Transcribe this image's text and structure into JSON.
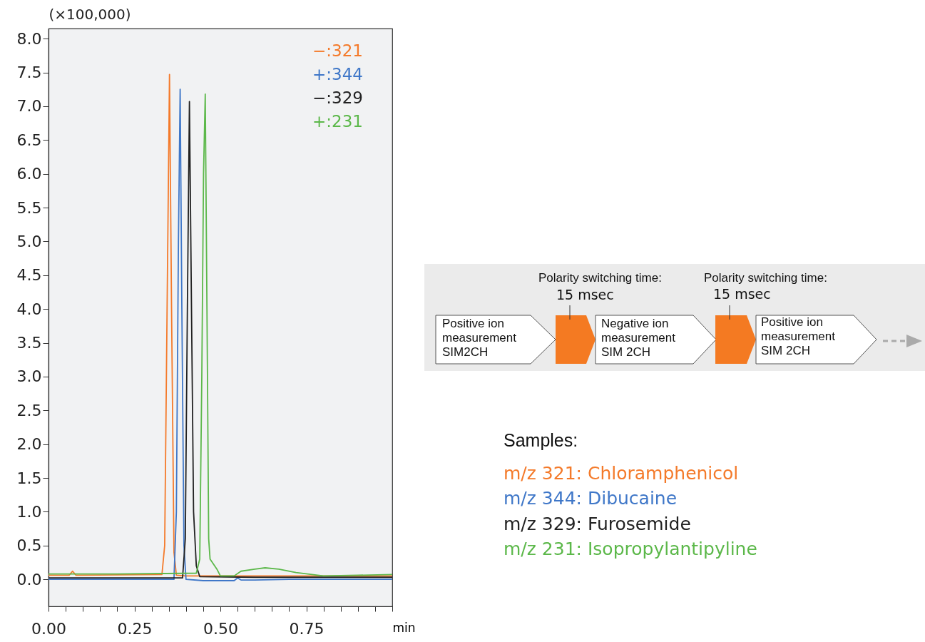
{
  "chart_data": [
    {
      "type": "line",
      "xlabel": "min",
      "ylabel": "(×100,000)",
      "xlim": [
        0,
        1.0
      ],
      "ylim": [
        -0.4,
        8.15
      ],
      "xticks": [
        {
          "value": 0,
          "label": "0.00"
        },
        {
          "value": 0.05,
          "label": null
        },
        {
          "value": 0.1,
          "label": null
        },
        {
          "value": 0.15,
          "label": null
        },
        {
          "value": 0.2,
          "label": null
        },
        {
          "value": 0.25,
          "label": "0.25"
        },
        {
          "value": 0.3,
          "label": null
        },
        {
          "value": 0.35,
          "label": null
        },
        {
          "value": 0.4,
          "label": null
        },
        {
          "value": 0.45,
          "label": null
        },
        {
          "value": 0.5,
          "label": "0.50"
        },
        {
          "value": 0.55,
          "label": null
        },
        {
          "value": 0.6,
          "label": null
        },
        {
          "value": 0.65,
          "label": null
        },
        {
          "value": 0.7,
          "label": null
        },
        {
          "value": 0.75,
          "label": "0.75"
        },
        {
          "value": 0.8,
          "label": null
        },
        {
          "value": 0.85,
          "label": null
        },
        {
          "value": 0.9,
          "label": null
        },
        {
          "value": 0.95,
          "label": null
        },
        {
          "value": 1.0,
          "label": null
        }
      ],
      "yticks": [
        {
          "value": 0,
          "label": "0.0"
        },
        0.5,
        {
          "value": 1,
          "label": "1.0"
        },
        1.5,
        {
          "value": 2,
          "label": "2.0"
        },
        2.5,
        {
          "value": 3,
          "label": "3.0"
        },
        3.5,
        {
          "value": 4,
          "label": "4.0"
        },
        4.5,
        {
          "value": 5,
          "label": "5.0"
        },
        5.5,
        {
          "value": 6,
          "label": "6.0"
        },
        6.5,
        {
          "value": 7,
          "label": "7.0"
        },
        7.5,
        {
          "value": 8,
          "label": "8.0"
        }
      ],
      "legend": "top right",
      "grid": false,
      "series": [
        {
          "name": "−:321",
          "color": "#f47a2a",
          "x": [
            0,
            0.06,
            0.07,
            0.08,
            0.33,
            0.338,
            0.345,
            0.352,
            0.358,
            0.365,
            0.372,
            0.4,
            0.6,
            0.8,
            1.0
          ],
          "values": [
            0.06,
            0.06,
            0.12,
            0.06,
            0.07,
            0.5,
            4.0,
            7.47,
            4.0,
            0.4,
            0.06,
            0.05,
            0.05,
            0.05,
            0.05
          ]
        },
        {
          "name": "+:344",
          "color": "#3f77c8",
          "x": [
            0,
            0.365,
            0.372,
            0.378,
            0.383,
            0.388,
            0.394,
            0.4,
            0.45,
            0.54,
            0.55,
            0.56,
            0.6,
            0.7,
            1.0
          ],
          "values": [
            0.0,
            0.0,
            1.0,
            5.0,
            7.25,
            4.0,
            0.5,
            0.0,
            -0.02,
            -0.02,
            0.02,
            -0.01,
            -0.01,
            0.0,
            0.0
          ]
        },
        {
          "name": "−:329",
          "color": "#222222",
          "x": [
            0,
            0.39,
            0.398,
            0.404,
            0.41,
            0.416,
            0.422,
            0.43,
            0.44,
            0.6,
            1.0
          ],
          "values": [
            0.02,
            0.02,
            0.6,
            4.0,
            7.07,
            4.0,
            1.0,
            0.2,
            0.04,
            0.03,
            0.03
          ]
        },
        {
          "name": "+:231",
          "color": "#5cb84a",
          "x": [
            0,
            0.2,
            0.43,
            0.44,
            0.446,
            0.451,
            0.456,
            0.461,
            0.466,
            0.47,
            0.49,
            0.5,
            0.54,
            0.56,
            0.6,
            0.63,
            0.67,
            0.72,
            0.8,
            0.9,
            1.0
          ],
          "values": [
            0.08,
            0.08,
            0.09,
            0.3,
            3.0,
            6.0,
            7.18,
            4.0,
            0.6,
            0.3,
            0.15,
            0.05,
            0.05,
            0.12,
            0.15,
            0.17,
            0.15,
            0.1,
            0.05,
            0.06,
            0.07
          ]
        }
      ],
      "annotations": [
        "Samples:",
        "m/z 321: Chloramphenicol",
        "m/z 344: Dibucaine",
        "m/z 329: Furosemide",
        "m/z 231: Isopropylantipyline"
      ]
    },
    {
      "type": "other",
      "annotations": [
        "Positive ion\nmeasurement\nSIM2CH",
        "Polarity switching time:",
        "15 msec",
        "Negative ion\nmeasurement\nSIM 2CH",
        "Polarity switching time:",
        "15 msec",
        "Positive ion\nmeasurement\nSIM 2CH"
      ]
    }
  ]
}
